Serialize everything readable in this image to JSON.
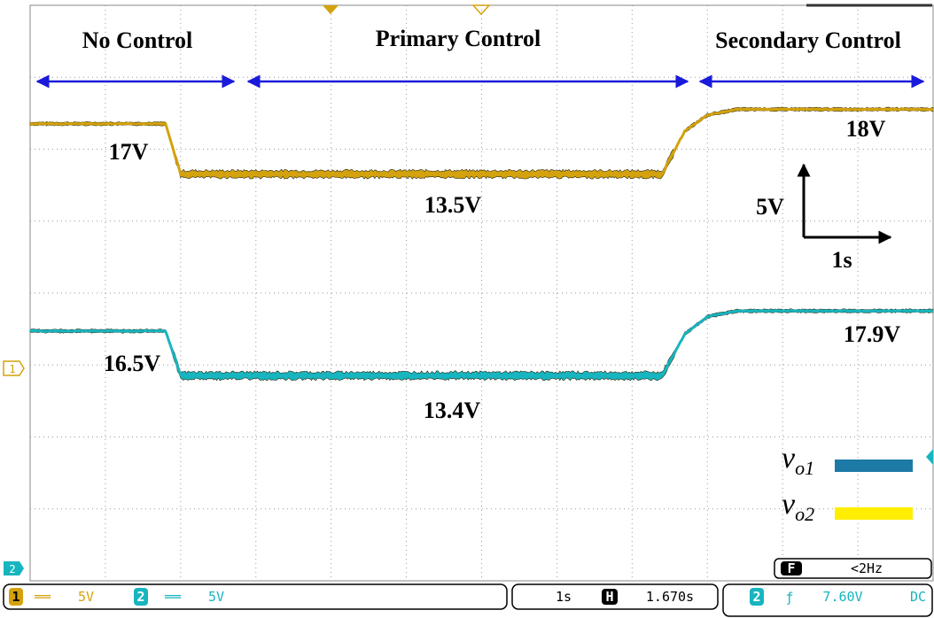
{
  "chart_data": {
    "type": "line",
    "title": "",
    "x": [
      0,
      0.8,
      0.9,
      1.0,
      2.0,
      3.0,
      4.0,
      4.2,
      4.35,
      4.5,
      4.7,
      6.0
    ],
    "xlim": [
      0,
      6
    ],
    "ylim": [
      -20,
      20
    ],
    "grid": true,
    "series": [
      {
        "name": "v_o2",
        "color": "#d4a20c",
        "values": [
          17,
          17,
          17,
          13.5,
          13.5,
          13.5,
          13.5,
          13.5,
          16.5,
          17.6,
          18,
          18
        ]
      },
      {
        "name": "v_o1",
        "color": "#17b5c0",
        "values": [
          16.5,
          16.5,
          16.5,
          13.4,
          13.4,
          13.4,
          13.4,
          13.4,
          16.3,
          17.5,
          17.9,
          17.9
        ]
      }
    ],
    "regions": [
      {
        "label": "No Control"
      },
      {
        "label": "Primary Control"
      },
      {
        "label": "Secondary Control"
      }
    ],
    "annotations": {
      "ch_yellow_before": "17V",
      "ch_yellow_primary": "13.5V",
      "ch_yellow_secondary": "18V",
      "ch_cyan_before": "16.5V",
      "ch_cyan_primary": "13.4V",
      "ch_cyan_secondary": "17.9V",
      "scale_y": "5V",
      "scale_x": "1s"
    },
    "legend": {
      "placement": "bottom-right",
      "items": [
        {
          "symbol": "v",
          "sub": "o1",
          "color": "#1d79a6"
        },
        {
          "symbol": "v",
          "sub": "o2",
          "color": "#ffee00"
        }
      ]
    }
  },
  "scope": {
    "ch1_marker": "1",
    "ch2_marker": "2",
    "status": {
      "ch1": "1",
      "ch1_coupling": "══",
      "ch1_scale": "5V",
      "ch2": "2",
      "ch2_coupling": "══",
      "ch2_scale": "5V",
      "timebase": "1s",
      "h_icon": "H",
      "h_pos": "1.670s",
      "trig_src": "2",
      "trig_edge": "ƒ",
      "trig_level": "7.60V",
      "trig_coupling": "DC",
      "freq_icon": "F",
      "freq": "<2Hz"
    },
    "colors": {
      "ch1": "#d4a20c",
      "ch2": "#17b5c0",
      "arrow": "#1a1adb"
    }
  }
}
